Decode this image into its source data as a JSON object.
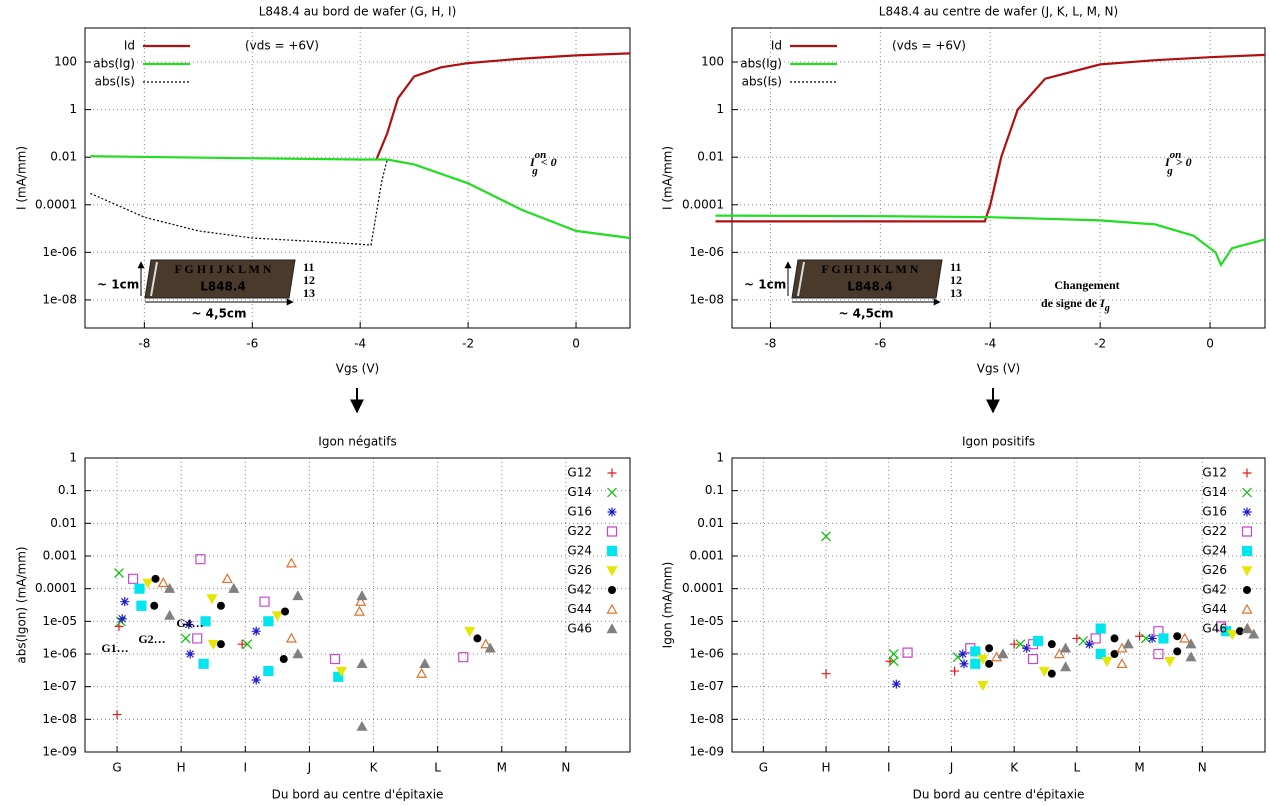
{
  "chart_data": [
    {
      "type": "line",
      "title": "L848.4 au bord de wafer (G, H, I)",
      "x_label": "Vgs (V)",
      "y_label": "I (mA/mm)",
      "log_y": true,
      "grid": true,
      "xlim": [
        -9.1,
        1
      ],
      "xticks": [
        -8,
        -6,
        -4,
        -2,
        0
      ],
      "ylim": [
        6.6e-10,
        2700
      ],
      "yticks": [
        100,
        1,
        0.01,
        0.0001,
        {
          "value": 1e-06,
          "label": "1e-06"
        },
        {
          "value": 1e-08,
          "label": "1e-08"
        }
      ],
      "series": [
        {
          "name": "Id",
          "color": "#b01010",
          "dash": false,
          "x": [
            -3.7,
            -3.5,
            -3.3,
            -3,
            -2.5,
            -2,
            -1,
            0,
            1
          ],
          "values": [
            0.008,
            0.1,
            3,
            25,
            60,
            90,
            140,
            190,
            230
          ]
        },
        {
          "name": "abs(Ig)",
          "color": "#22dd22",
          "dash": false,
          "x": [
            -9,
            -6,
            -4,
            -3.5,
            -3,
            -2,
            -1,
            0,
            1
          ],
          "values": [
            0.011,
            0.009,
            0.008,
            0.008,
            0.005,
            0.0008,
            6e-05,
            8e-06,
            4e-06
          ]
        },
        {
          "name": "abs(Is)",
          "color": "#000000",
          "dash": true,
          "x": [
            -9,
            -8,
            -7,
            -6,
            -5,
            -4,
            -3.8,
            -3.6,
            -3.5
          ],
          "values": [
            0.0003,
            3e-05,
            8e-06,
            4e-06,
            3e-06,
            2.2e-06,
            2e-06,
            0.001,
            0.008
          ]
        }
      ],
      "note": "(vds = +6V)",
      "annotation": {
        "base": "I",
        "sub": "g",
        "sup": "on",
        "tail": " < 0"
      },
      "inset": {
        "letters": "F G H I J K L M N",
        "wafer": "L848.4",
        "rows": [
          "11",
          "12",
          "13"
        ],
        "height": "~ 1cm",
        "width": "~ 4,5cm"
      }
    },
    {
      "type": "line",
      "title": "L848.4 au centre de wafer (J, K, L, M, N)",
      "x_label": "Vgs (V)",
      "y_label": "I (mA/mm)",
      "log_y": true,
      "grid": true,
      "xlim": [
        -8.7,
        1
      ],
      "xticks": [
        -8,
        -6,
        -4,
        -2,
        0
      ],
      "ylim": [
        6.6e-10,
        2700
      ],
      "yticks": [
        100,
        1,
        0.01,
        0.0001,
        {
          "value": 1e-06,
          "label": "1e-06"
        },
        {
          "value": 1e-08,
          "label": "1e-08"
        }
      ],
      "series": [
        {
          "name": "Id",
          "color": "#b01010",
          "dash": false,
          "x": [
            -9,
            -4.1,
            -4,
            -3.8,
            -3.5,
            -3,
            -2,
            -1,
            0,
            1
          ],
          "values": [
            2e-05,
            2e-05,
            0.0001,
            0.01,
            1,
            20,
            80,
            120,
            160,
            200
          ]
        },
        {
          "name": "abs(Ig)",
          "color": "#22dd22",
          "dash": false,
          "x": [
            -9,
            -6,
            -4,
            -2,
            -1,
            -0.3,
            0.1,
            0.2,
            0.4,
            1
          ],
          "values": [
            3.5e-05,
            3.3e-05,
            3e-05,
            2.2e-05,
            1.5e-05,
            5e-06,
            1e-06,
            3e-07,
            1.5e-06,
            3.5e-06
          ]
        },
        {
          "name": "abs(Is)",
          "color": "#000000",
          "dash": true,
          "x": [],
          "values": []
        }
      ],
      "note": "(vds = +6V)",
      "annotation": {
        "base": "I",
        "sub": "g",
        "sup": "on",
        "tail": " > 0"
      },
      "sign_change": {
        "line1": "Changement",
        "line2": "de signe de ",
        "base": "I",
        "sub": "g"
      },
      "inset": {
        "letters": "F G H I J K L M N",
        "wafer": "L848.4",
        "rows": [
          "11",
          "12",
          "13"
        ],
        "height": "~ 1cm",
        "width": "~ 4,5cm"
      }
    },
    {
      "type": "scatter",
      "title": "Igon négatifs",
      "x_label": "Du bord au centre d'épitaxie",
      "y_label": "abs(Igon) (mA/mm)",
      "log_y": true,
      "grid": true,
      "xlim": [
        0.5,
        9
      ],
      "xticks": [
        {
          "value": 1,
          "label": "G"
        },
        {
          "value": 2,
          "label": "H"
        },
        {
          "value": 3,
          "label": "I"
        },
        {
          "value": 4,
          "label": "J"
        },
        {
          "value": 5,
          "label": "K"
        },
        {
          "value": 6,
          "label": "L"
        },
        {
          "value": 7,
          "label": "M"
        },
        {
          "value": 8,
          "label": "N"
        }
      ],
      "ylim": [
        1e-09,
        1
      ],
      "yticks": [
        1,
        0.1,
        0.01,
        0.001,
        0.0001,
        {
          "value": 1e-05,
          "label": "1e-05"
        },
        {
          "value": 1e-06,
          "label": "1e-06"
        },
        {
          "value": 1e-07,
          "label": "1e-07"
        },
        {
          "value": 1e-08,
          "label": "1e-08"
        },
        {
          "value": 1e-09,
          "label": "1e-09"
        }
      ],
      "series": [
        {
          "name": "G12",
          "color": "#e41a1c",
          "marker": "plus",
          "x": [
            1.0,
            1.03,
            2.95
          ],
          "values": [
            1.4e-08,
            7e-06,
            2e-06
          ]
        },
        {
          "name": "G14",
          "color": "#00c000",
          "marker": "cross",
          "x": [
            1.03,
            1.06,
            2.07,
            3.03
          ],
          "values": [
            0.0003,
            1e-05,
            3e-06,
            2e-06
          ]
        },
        {
          "name": "G16",
          "color": "#1a1acc",
          "marker": "star",
          "x": [
            1.12,
            1.08,
            2.12,
            2.14,
            3.17,
            3.17
          ],
          "values": [
            4e-05,
            1.2e-05,
            8e-06,
            1e-06,
            5e-06,
            1.6e-07
          ]
        },
        {
          "name": "G22",
          "color": "#cc44cc",
          "marker": "square-open",
          "x": [
            1.25,
            2.3,
            2.25,
            3.3,
            4.4,
            6.4
          ],
          "values": [
            0.0002,
            0.0008,
            3e-06,
            4e-05,
            7e-07,
            8e-07
          ]
        },
        {
          "name": "G24",
          "color": "#00e5ee",
          "marker": "square",
          "x": [
            1.35,
            1.38,
            2.38,
            2.35,
            3.36,
            3.36,
            4.45
          ],
          "values": [
            0.0001,
            3e-05,
            1e-05,
            5e-07,
            1e-05,
            3e-07,
            2e-07
          ]
        },
        {
          "name": "G26",
          "color": "#e6e600",
          "marker": "tri-down",
          "x": [
            1.48,
            2.48,
            2.5,
            3.5,
            4.5,
            6.5
          ],
          "values": [
            0.00015,
            5e-05,
            2e-06,
            1.5e-05,
            3e-07,
            5e-06
          ]
        },
        {
          "name": "G42",
          "color": "#000000",
          "marker": "circle",
          "x": [
            1.6,
            1.58,
            2.62,
            2.62,
            3.62,
            3.6,
            6.62
          ],
          "values": [
            0.0002,
            3e-05,
            3e-05,
            2e-06,
            2e-05,
            7e-07,
            3e-06
          ]
        },
        {
          "name": "G44",
          "color": "#e07030",
          "marker": "tri-open",
          "x": [
            1.72,
            2.72,
            3.72,
            3.72,
            4.8,
            4.78,
            5.75,
            6.75
          ],
          "values": [
            0.00015,
            0.0002,
            0.0006,
            3e-06,
            4e-05,
            2e-05,
            2.5e-07,
            2e-06
          ]
        },
        {
          "name": "G46",
          "color": "#808080",
          "marker": "tri",
          "x": [
            1.82,
            1.82,
            2.82,
            3.82,
            3.82,
            4.82,
            4.82,
            4.82,
            5.8,
            6.82
          ],
          "values": [
            0.0001,
            1.5e-05,
            0.0001,
            6e-05,
            1e-06,
            6e-05,
            5e-07,
            6e-09,
            5e-07,
            1.5e-06
          ]
        }
      ],
      "groups": [
        "G1…",
        "G2…",
        "G4…"
      ]
    },
    {
      "type": "scatter",
      "title": "Igon positifs",
      "x_label": "Du bord au centre d'épitaxie",
      "y_label": "Igon (mA/mm)",
      "log_y": true,
      "grid": true,
      "xlim": [
        0.5,
        9
      ],
      "xticks": [
        {
          "value": 1,
          "label": "G"
        },
        {
          "value": 2,
          "label": "H"
        },
        {
          "value": 3,
          "label": "I"
        },
        {
          "value": 4,
          "label": "J"
        },
        {
          "value": 5,
          "label": "K"
        },
        {
          "value": 6,
          "label": "L"
        },
        {
          "value": 7,
          "label": "M"
        },
        {
          "value": 8,
          "label": "N"
        }
      ],
      "ylim": [
        1e-09,
        1
      ],
      "yticks": [
        1,
        0.1,
        0.01,
        0.001,
        0.0001,
        {
          "value": 1e-05,
          "label": "1e-05"
        },
        {
          "value": 1e-06,
          "label": "1e-06"
        },
        {
          "value": 1e-07,
          "label": "1e-07"
        },
        {
          "value": 1e-08,
          "label": "1e-08"
        },
        {
          "value": 1e-09,
          "label": "1e-09"
        }
      ],
      "series": [
        {
          "name": "G12",
          "color": "#e41a1c",
          "marker": "plus",
          "x": [
            2,
            3.02,
            4.05,
            5.0,
            6.0,
            7.0
          ],
          "values": [
            2.5e-07,
            6e-07,
            3e-07,
            2e-06,
            3e-06,
            3.5e-06
          ]
        },
        {
          "name": "G14",
          "color": "#00c000",
          "marker": "cross",
          "x": [
            2,
            3.08,
            3.08,
            4.1,
            5.1,
            6.1,
            7.1
          ],
          "values": [
            0.004,
            1e-06,
            6e-07,
            8e-07,
            2e-06,
            2.5e-06,
            3e-06
          ]
        },
        {
          "name": "G16",
          "color": "#1a1acc",
          "marker": "star",
          "x": [
            3.12,
            4.18,
            4.2,
            5.2,
            6.2,
            7.2
          ],
          "values": [
            1.2e-07,
            1e-06,
            5e-07,
            1.5e-06,
            2e-06,
            3e-06
          ]
        },
        {
          "name": "G22",
          "color": "#cc44cc",
          "marker": "square-open",
          "x": [
            3.3,
            4.3,
            5.3,
            5.3,
            6.3,
            7.3,
            7.3,
            8.3
          ],
          "values": [
            1.1e-06,
            1.5e-06,
            2e-06,
            7e-07,
            3e-06,
            5e-06,
            1e-06,
            7e-06
          ]
        },
        {
          "name": "G24",
          "color": "#00e5ee",
          "marker": "square",
          "x": [
            4.38,
            4.38,
            5.38,
            6.38,
            6.38,
            7.38,
            8.38
          ],
          "values": [
            1.2e-06,
            5e-07,
            2.5e-06,
            6e-06,
            1e-06,
            3e-06,
            5e-06
          ]
        },
        {
          "name": "G26",
          "color": "#e6e600",
          "marker": "tri-down",
          "x": [
            4.5,
            4.5,
            5.48,
            6.48,
            7.48,
            8.48
          ],
          "values": [
            1.1e-07,
            7e-07,
            3e-07,
            6e-07,
            6e-07,
            4e-06
          ]
        },
        {
          "name": "G42",
          "color": "#000000",
          "marker": "circle",
          "x": [
            4.6,
            4.6,
            5.6,
            5.6,
            6.6,
            6.6,
            7.6,
            7.6,
            8.6
          ],
          "values": [
            1.5e-06,
            5e-07,
            2e-06,
            2.5e-07,
            3e-06,
            1e-06,
            3.5e-06,
            1.2e-06,
            5e-06
          ]
        },
        {
          "name": "G44",
          "color": "#e07030",
          "marker": "tri-open",
          "x": [
            4.72,
            5.72,
            6.72,
            6.72,
            7.72,
            8.72
          ],
          "values": [
            8e-07,
            1e-06,
            1.5e-06,
            5e-07,
            3e-06,
            6e-06
          ]
        },
        {
          "name": "G46",
          "color": "#808080",
          "marker": "tri",
          "x": [
            4.82,
            5.82,
            5.82,
            6.82,
            7.82,
            7.82,
            8.82
          ],
          "values": [
            1e-06,
            1.5e-06,
            4e-07,
            2e-06,
            2e-06,
            8e-07,
            4e-06
          ]
        }
      ]
    }
  ]
}
